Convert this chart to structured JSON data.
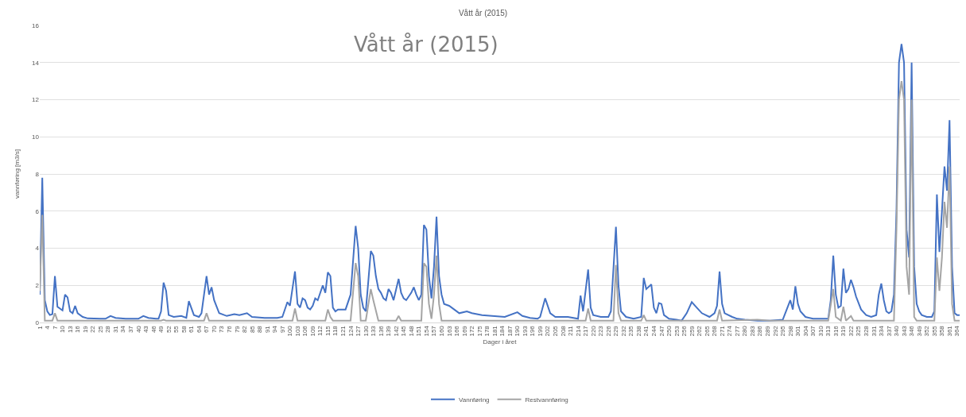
{
  "chart_data": {
    "type": "line",
    "title": "Vått år (2015)",
    "xlabel": "Dager i året",
    "ylabel": "vannføring [m3/s]",
    "annotations": [
      "Vått år (2015)"
    ],
    "xlim": [
      1,
      365
    ],
    "xticks": [
      1,
      4,
      7,
      10,
      13,
      16,
      19,
      22,
      25,
      28,
      31,
      34,
      37,
      40,
      43,
      46,
      49,
      52,
      55,
      58,
      61,
      64,
      67,
      70,
      73,
      76,
      79,
      82,
      85,
      88,
      91,
      94,
      97,
      100,
      103,
      106,
      109,
      112,
      115,
      118,
      121,
      124,
      127,
      130,
      133,
      136,
      139,
      142,
      145,
      148,
      151,
      154,
      157,
      160,
      163,
      166,
      169,
      172,
      175,
      178,
      181,
      184,
      187,
      190,
      193,
      196,
      199,
      202,
      205,
      208,
      211,
      214,
      217,
      220,
      223,
      226,
      229,
      232,
      235,
      238,
      241,
      244,
      247,
      250,
      253,
      256,
      259,
      262,
      265,
      268,
      271,
      274,
      277,
      280,
      283,
      286,
      289,
      292,
      295,
      298,
      301,
      304,
      307,
      310,
      313,
      316,
      319,
      322,
      325,
      328,
      331,
      334,
      337,
      340,
      343,
      346,
      349,
      352,
      355,
      358,
      361,
      364
    ],
    "ylim": [
      0,
      16
    ],
    "yticks": [
      0,
      2,
      4,
      6,
      8,
      10,
      12,
      14,
      16
    ],
    "grid": "y",
    "legend": "bottom",
    "marker": "none",
    "line_style": "solid",
    "series": [
      {
        "name": "Vannføring",
        "color": "#4472c4",
        "x": [
          1,
          2,
          3,
          4,
          5,
          6,
          7,
          8,
          9,
          10,
          11,
          12,
          13,
          14,
          15,
          16,
          18,
          20,
          25,
          27,
          29,
          31,
          35,
          40,
          42,
          44,
          47,
          48,
          49,
          50,
          51,
          52,
          54,
          57,
          59,
          60,
          62,
          64,
          65,
          67,
          68,
          69,
          70,
          72,
          75,
          78,
          80,
          83,
          85,
          90,
          95,
          97,
          99,
          100,
          102,
          103,
          104,
          105,
          106,
          107,
          108,
          109,
          110,
          111,
          113,
          114,
          115,
          116,
          117,
          118,
          119,
          122,
          124,
          126,
          127,
          128,
          129,
          130,
          131,
          132,
          133,
          134,
          135,
          136,
          137,
          138,
          139,
          140,
          141,
          143,
          144,
          145,
          146,
          148,
          149,
          150,
          151,
          152,
          153,
          154,
          155,
          156,
          157,
          158,
          159,
          160,
          161,
          163,
          165,
          167,
          170,
          172,
          176,
          180,
          185,
          190,
          192,
          195,
          198,
          199,
          201,
          203,
          205,
          210,
          214,
          215,
          216,
          218,
          219,
          220,
          223,
          226,
          227,
          229,
          230,
          231,
          233,
          236,
          239,
          240,
          241,
          243,
          244,
          245,
          246,
          247,
          248,
          250,
          253,
          255,
          257,
          259,
          261,
          263,
          266,
          268,
          269,
          270,
          271,
          272,
          275,
          277,
          280,
          285,
          290,
          295,
          296,
          298,
          299,
          300,
          301,
          302,
          304,
          307,
          310,
          313,
          314,
          315,
          316,
          317,
          318,
          319,
          320,
          321,
          322,
          323,
          324,
          326,
          328,
          330,
          332,
          333,
          334,
          335,
          336,
          337,
          338,
          339,
          340,
          341,
          342,
          343,
          344,
          345,
          346,
          347,
          348,
          349,
          350,
          352,
          354,
          355,
          356,
          357,
          358,
          359,
          360,
          361,
          362,
          363,
          364,
          365
        ],
        "values": [
          1.5,
          7.8,
          1.2,
          0.6,
          0.4,
          0.45,
          2.5,
          0.85,
          0.75,
          0.65,
          1.5,
          1.35,
          0.6,
          0.5,
          0.9,
          0.5,
          0.3,
          0.22,
          0.2,
          0.2,
          0.35,
          0.25,
          0.2,
          0.2,
          0.35,
          0.25,
          0.2,
          0.2,
          0.6,
          2.15,
          1.7,
          0.4,
          0.3,
          0.35,
          0.25,
          1.15,
          0.4,
          0.3,
          0.5,
          2.5,
          1.5,
          1.9,
          1.2,
          0.5,
          0.35,
          0.45,
          0.4,
          0.5,
          0.3,
          0.25,
          0.25,
          0.3,
          1.1,
          0.9,
          2.75,
          1.0,
          0.8,
          1.3,
          1.2,
          0.8,
          0.7,
          0.9,
          1.3,
          1.2,
          2.0,
          1.6,
          2.7,
          2.5,
          0.8,
          0.6,
          0.7,
          0.7,
          1.5,
          5.2,
          4.0,
          1.5,
          0.8,
          0.6,
          2.2,
          3.85,
          3.6,
          2.5,
          1.8,
          1.6,
          1.3,
          1.2,
          1.8,
          1.6,
          1.2,
          2.35,
          1.6,
          1.3,
          1.2,
          1.6,
          1.9,
          1.5,
          1.2,
          1.5,
          5.25,
          5.0,
          2.5,
          1.3,
          3.0,
          5.7,
          2.5,
          1.5,
          1.0,
          0.9,
          0.7,
          0.5,
          0.6,
          0.5,
          0.4,
          0.35,
          0.3,
          0.55,
          0.35,
          0.25,
          0.2,
          0.3,
          1.3,
          0.5,
          0.3,
          0.3,
          0.2,
          1.45,
          0.6,
          2.85,
          0.8,
          0.4,
          0.3,
          0.3,
          0.6,
          5.15,
          2.0,
          0.6,
          0.3,
          0.2,
          0.3,
          2.4,
          1.8,
          2.05,
          0.8,
          0.5,
          1.05,
          1.0,
          0.4,
          0.2,
          0.15,
          0.1,
          0.5,
          1.1,
          0.8,
          0.5,
          0.3,
          0.5,
          0.9,
          2.75,
          1.0,
          0.5,
          0.3,
          0.2,
          0.15,
          0.1,
          0.1,
          0.15,
          0.5,
          1.2,
          0.7,
          1.95,
          1.0,
          0.6,
          0.3,
          0.2,
          0.2,
          0.2,
          1.2,
          3.6,
          1.5,
          0.8,
          0.9,
          2.9,
          1.6,
          1.8,
          2.3,
          1.9,
          1.4,
          0.7,
          0.4,
          0.3,
          0.4,
          1.5,
          2.1,
          1.2,
          0.6,
          0.5,
          0.6,
          1.5,
          6.0,
          14.0,
          15.0,
          14.0,
          5.0,
          3.5,
          14.0,
          3.0,
          1.0,
          0.6,
          0.4,
          0.3,
          0.3,
          0.6,
          6.9,
          3.8,
          6.0,
          8.4,
          7.1,
          10.9,
          3.0,
          0.5,
          0.4,
          0.4
        ]
      },
      {
        "name": "Restvannføring",
        "color": "#a5a5a5",
        "x": [
          1,
          2,
          3,
          6,
          7,
          8,
          49,
          50,
          51,
          66,
          67,
          68,
          101,
          102,
          103,
          114,
          115,
          116,
          117,
          124,
          126,
          127,
          128,
          130,
          132,
          133,
          135,
          142,
          143,
          144,
          152,
          153,
          154,
          155,
          156,
          157,
          158,
          159,
          160,
          217,
          218,
          219,
          228,
          229,
          230,
          231,
          239,
          240,
          241,
          269,
          270,
          271,
          285,
          290,
          313,
          315,
          316,
          318,
          319,
          320,
          322,
          323,
          339,
          340,
          341,
          342,
          343,
          344,
          345,
          346,
          347,
          348,
          355,
          356,
          357,
          358,
          359,
          360,
          361,
          362,
          363,
          365
        ],
        "values": [
          1.7,
          5.8,
          0.1,
          0.1,
          0.5,
          0.1,
          0.1,
          0.15,
          0.1,
          0.1,
          0.5,
          0.1,
          0.1,
          0.75,
          0.1,
          0.1,
          0.7,
          0.3,
          0.1,
          0.1,
          3.2,
          2.5,
          0.1,
          0.1,
          1.8,
          1.2,
          0.1,
          0.1,
          0.35,
          0.1,
          0.1,
          3.2,
          3.0,
          1.0,
          0.2,
          1.5,
          3.6,
          1.0,
          0.1,
          0.1,
          0.75,
          0.1,
          0.1,
          3.1,
          0.5,
          0.1,
          0.1,
          0.4,
          0.1,
          0.1,
          0.7,
          0.1,
          0.15,
          0.1,
          0.1,
          1.8,
          0.3,
          0.1,
          0.85,
          0.1,
          0.35,
          0.1,
          0.1,
          5.0,
          12.0,
          13.0,
          12.0,
          3.0,
          1.5,
          12.0,
          0.3,
          0.1,
          0.1,
          3.5,
          1.7,
          3.5,
          6.5,
          5.1,
          8.4,
          1.0,
          0.1,
          0.1
        ]
      }
    ]
  }
}
